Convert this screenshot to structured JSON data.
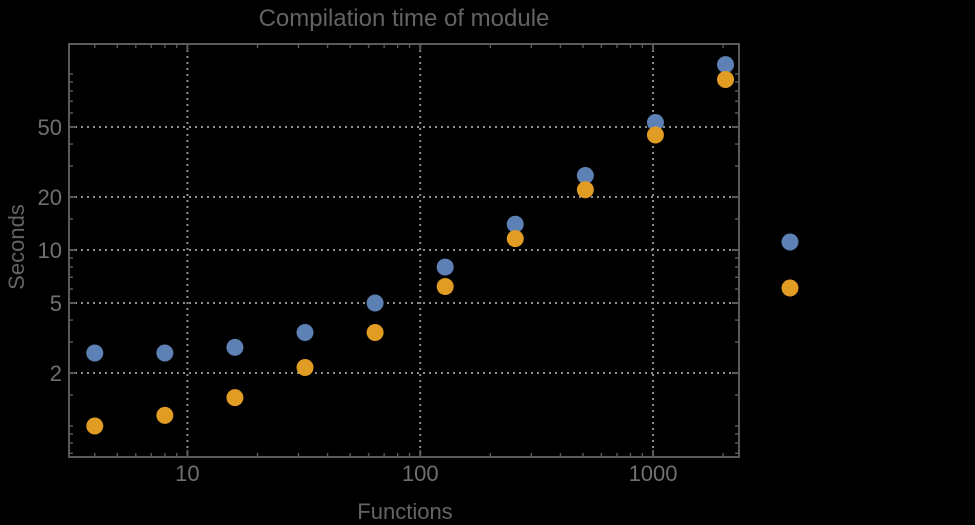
{
  "chart_data": {
    "type": "scatter",
    "title": "Compilation time of module",
    "xlabel": "Functions",
    "ylabel": "Seconds",
    "x_scale": "log",
    "y_scale": "log",
    "x": [
      4,
      8,
      16,
      32,
      64,
      128,
      256,
      512,
      1024,
      2048
    ],
    "series": [
      {
        "name": "blue",
        "color": "#5e81b5",
        "values": [
          2.6,
          2.6,
          2.8,
          3.4,
          5.0,
          8.0,
          14,
          26.5,
          53,
          113
        ]
      },
      {
        "name": "orange",
        "color": "#e19c24",
        "values": [
          1.0,
          1.15,
          1.45,
          2.15,
          3.4,
          6.2,
          11.6,
          22,
          45,
          93
        ]
      }
    ],
    "x_ticks_labeled": [
      {
        "value": 10,
        "label": "10"
      },
      {
        "value": 100,
        "label": "100"
      },
      {
        "value": 1000,
        "label": "1000"
      }
    ],
    "y_ticks_labeled": [
      {
        "value": 2,
        "label": "2"
      },
      {
        "value": 5,
        "label": "5"
      },
      {
        "value": 10,
        "label": "10"
      },
      {
        "value": 20,
        "label": "20"
      },
      {
        "value": 50,
        "label": "50"
      }
    ],
    "x_ticks_minor": [
      4,
      5,
      6,
      7,
      8,
      9,
      20,
      30,
      40,
      50,
      60,
      70,
      80,
      90,
      200,
      300,
      400,
      500,
      600,
      700,
      800,
      900,
      2000
    ],
    "y_ticks_minor": [
      0.7,
      0.8,
      0.9,
      1,
      1.5,
      3,
      4,
      6,
      7,
      8,
      9,
      15,
      30,
      40,
      60,
      70,
      80,
      90,
      100
    ],
    "x_range": [
      3.1,
      2340
    ],
    "y_range": [
      0.667,
      148
    ],
    "grid": "dotted-at-labeled-ticks",
    "legend": {
      "position": "outside-right",
      "labels_visible": false,
      "entries": [
        {
          "marker_color": "#5e81b5",
          "label": ""
        },
        {
          "marker_color": "#e19c24",
          "label": ""
        }
      ]
    },
    "colors": {
      "background": "#000000",
      "frame": "#5a5a5a",
      "gridlines": "#8f8f8f",
      "tick_labels": "#707070",
      "title": "#636363",
      "axis_labels": "#646464"
    }
  }
}
